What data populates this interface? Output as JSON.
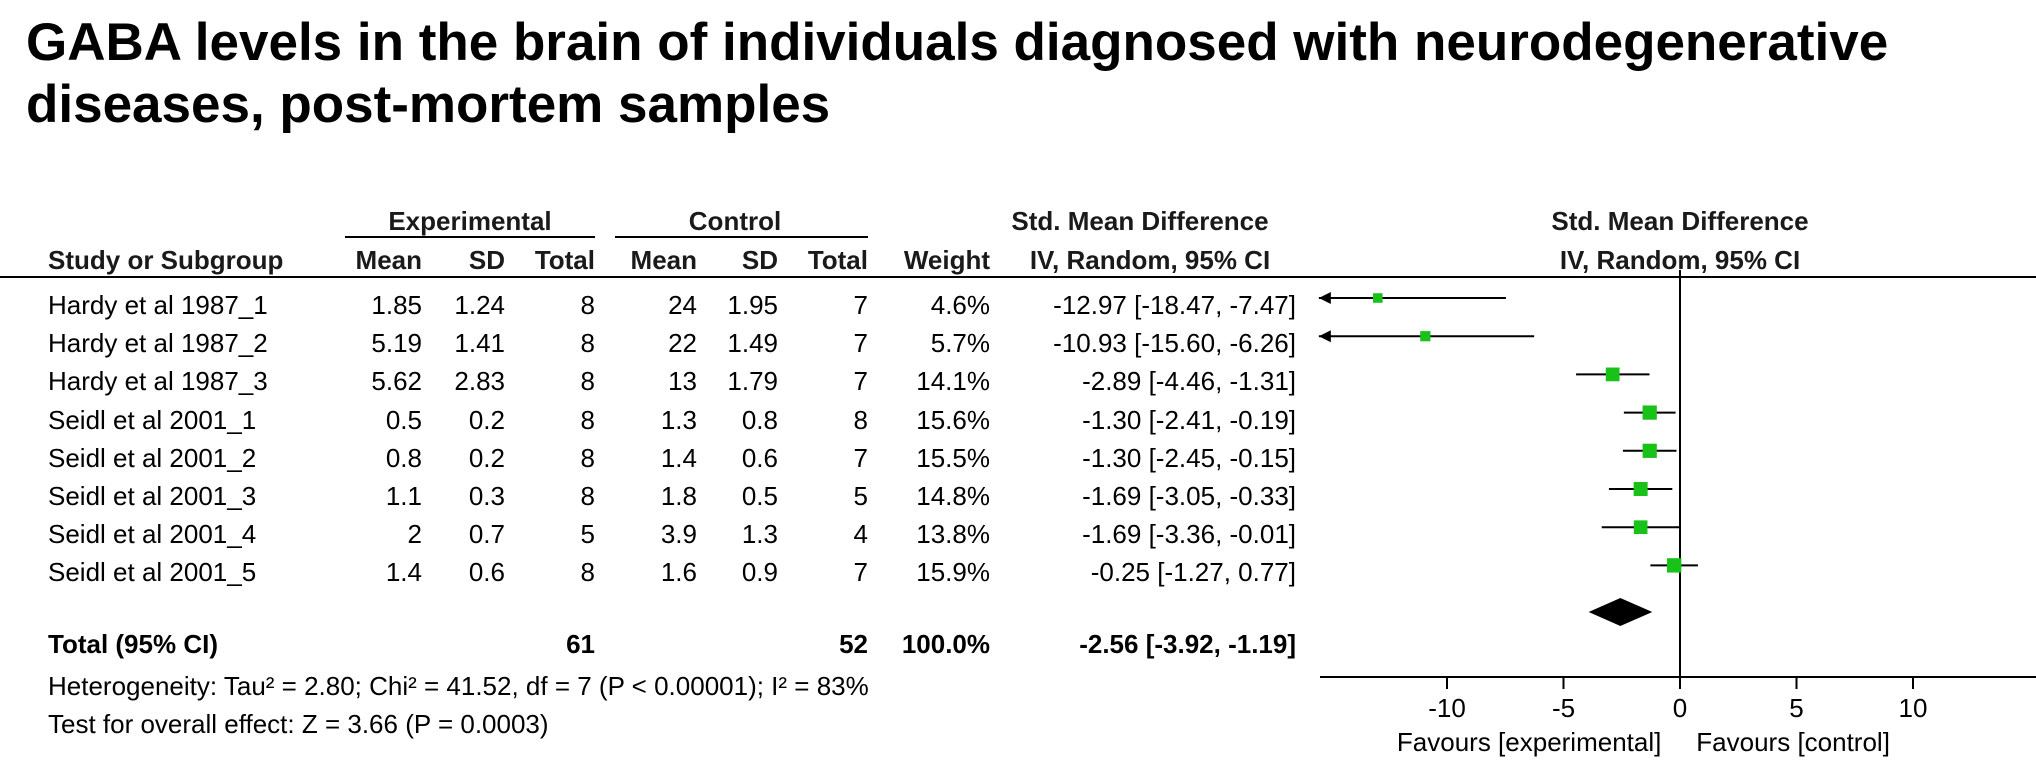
{
  "title": "GABA levels in the brain of individuals diagnosed with neurodegenerative\ndiseases, post-mortem samples",
  "headers": {
    "experimental_group": "Experimental",
    "control_group": "Control",
    "effect_table": "Std. Mean Difference",
    "effect_table_sub": "IV, Random, 95% CI",
    "effect_plot": "Std. Mean Difference",
    "effect_plot_sub": "IV, Random, 95% CI",
    "study": "Study or Subgroup",
    "exp_mean": "Mean",
    "exp_sd": "SD",
    "exp_total": "Total",
    "ctl_mean": "Mean",
    "ctl_sd": "SD",
    "ctl_total": "Total",
    "weight": "Weight"
  },
  "rows": [
    {
      "study": "Hardy et al 1987_1",
      "exp_mean": "1.85",
      "exp_sd": "1.24",
      "exp_total": "8",
      "ctl_mean": "24",
      "ctl_sd": "1.95",
      "ctl_total": "7",
      "weight": "4.6%",
      "ci_text": "-12.97 [-18.47, -7.47]"
    },
    {
      "study": "Hardy et al 1987_2",
      "exp_mean": "5.19",
      "exp_sd": "1.41",
      "exp_total": "8",
      "ctl_mean": "22",
      "ctl_sd": "1.49",
      "ctl_total": "7",
      "weight": "5.7%",
      "ci_text": "-10.93 [-15.60, -6.26]"
    },
    {
      "study": "Hardy et al 1987_3",
      "exp_mean": "5.62",
      "exp_sd": "2.83",
      "exp_total": "8",
      "ctl_mean": "13",
      "ctl_sd": "1.79",
      "ctl_total": "7",
      "weight": "14.1%",
      "ci_text": "-2.89 [-4.46, -1.31]"
    },
    {
      "study": "Seidl et al 2001_1",
      "exp_mean": "0.5",
      "exp_sd": "0.2",
      "exp_total": "8",
      "ctl_mean": "1.3",
      "ctl_sd": "0.8",
      "ctl_total": "8",
      "weight": "15.6%",
      "ci_text": "-1.30 [-2.41, -0.19]"
    },
    {
      "study": "Seidl et al 2001_2",
      "exp_mean": "0.8",
      "exp_sd": "0.2",
      "exp_total": "8",
      "ctl_mean": "1.4",
      "ctl_sd": "0.6",
      "ctl_total": "7",
      "weight": "15.5%",
      "ci_text": "-1.30 [-2.45, -0.15]"
    },
    {
      "study": "Seidl et al 2001_3",
      "exp_mean": "1.1",
      "exp_sd": "0.3",
      "exp_total": "8",
      "ctl_mean": "1.8",
      "ctl_sd": "0.5",
      "ctl_total": "5",
      "weight": "14.8%",
      "ci_text": "-1.69 [-3.05, -0.33]"
    },
    {
      "study": "Seidl et al 2001_4",
      "exp_mean": "2",
      "exp_sd": "0.7",
      "exp_total": "5",
      "ctl_mean": "3.9",
      "ctl_sd": "1.3",
      "ctl_total": "4",
      "weight": "13.8%",
      "ci_text": "-1.69 [-3.36, -0.01]"
    },
    {
      "study": "Seidl et al 2001_5",
      "exp_mean": "1.4",
      "exp_sd": "0.6",
      "exp_total": "8",
      "ctl_mean": "1.6",
      "ctl_sd": "0.9",
      "ctl_total": "7",
      "weight": "15.9%",
      "ci_text": "-0.25 [-1.27, 0.77]"
    }
  ],
  "total": {
    "label": "Total (95% CI)",
    "exp_total": "61",
    "ctl_total": "52",
    "weight": "100.0%",
    "ci_text": "-2.56 [-3.92, -1.19]"
  },
  "heterogeneity": "Heterogeneity: Tau² = 2.80; Chi² = 41.52, df = 7 (P < 0.00001); I² = 83%",
  "overall_effect": "Test for overall effect: Z = 3.66 (P = 0.0003)",
  "axis": {
    "favours_left": "Favours [experimental]",
    "favours_right": "Favours [control]"
  },
  "colors": {
    "marker": "#19c219",
    "diamond": "#000000",
    "line": "#000000"
  },
  "chart_data": {
    "type": "forest",
    "title": "GABA levels in the brain of individuals diagnosed with neurodegenerative diseases, post-mortem samples",
    "xlabel": "Std. Mean Difference, IV, Random, 95% CI",
    "xlim": [
      -15,
      15
    ],
    "xticks": [
      -10,
      -5,
      0,
      5,
      10
    ],
    "studies": [
      {
        "name": "Hardy et al 1987_1",
        "estimate": -12.97,
        "lower": -18.47,
        "upper": -7.47,
        "weight": 4.6
      },
      {
        "name": "Hardy et al 1987_2",
        "estimate": -10.93,
        "lower": -15.6,
        "upper": -6.26,
        "weight": 5.7
      },
      {
        "name": "Hardy et al 1987_3",
        "estimate": -2.89,
        "lower": -4.46,
        "upper": -1.31,
        "weight": 14.1
      },
      {
        "name": "Seidl et al 2001_1",
        "estimate": -1.3,
        "lower": -2.41,
        "upper": -0.19,
        "weight": 15.6
      },
      {
        "name": "Seidl et al 2001_2",
        "estimate": -1.3,
        "lower": -2.45,
        "upper": -0.15,
        "weight": 15.5
      },
      {
        "name": "Seidl et al 2001_3",
        "estimate": -1.69,
        "lower": -3.05,
        "upper": -0.33,
        "weight": 14.8
      },
      {
        "name": "Seidl et al 2001_4",
        "estimate": -1.69,
        "lower": -3.36,
        "upper": -0.01,
        "weight": 13.8
      },
      {
        "name": "Seidl et al 2001_5",
        "estimate": -0.25,
        "lower": -1.27,
        "upper": 0.77,
        "weight": 15.9
      }
    ],
    "pooled": {
      "name": "Total (95% CI)",
      "estimate": -2.56,
      "lower": -3.92,
      "upper": -1.19,
      "weight": 100.0
    }
  }
}
